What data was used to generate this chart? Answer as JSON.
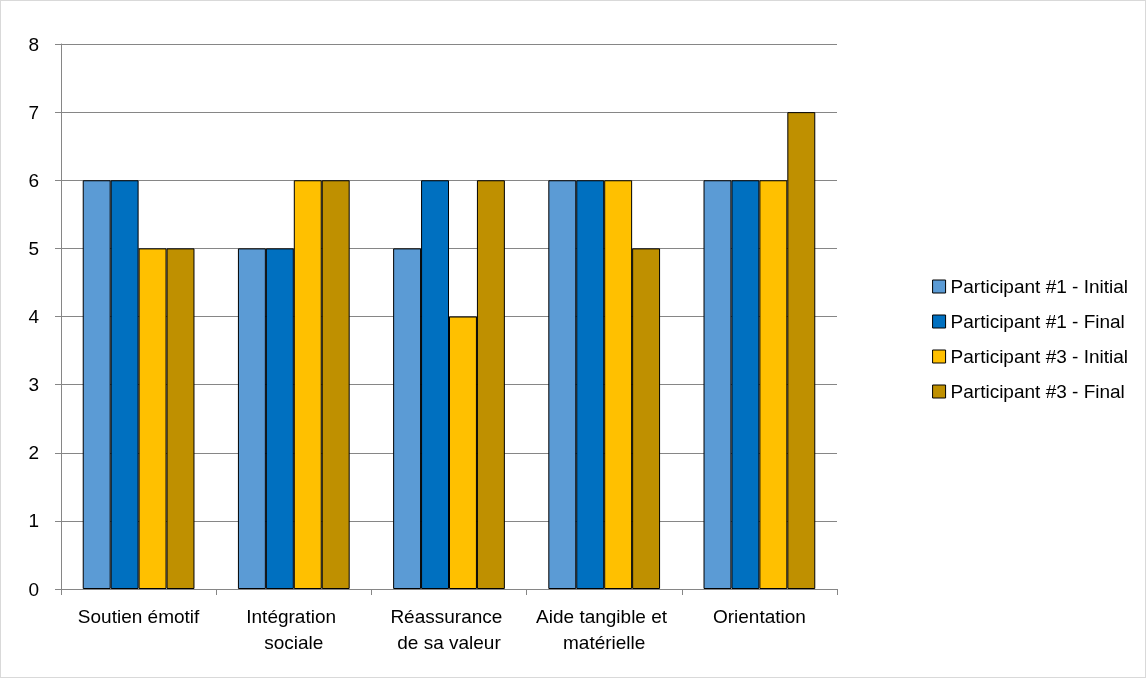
{
  "chart_data": {
    "type": "bar",
    "categories": [
      "Soutien émotif",
      "Intégration sociale",
      "Réassurance de sa valeur",
      "Aide tangible et matérielle",
      "Orientation"
    ],
    "series": [
      {
        "name": "Participant #1 - Initial",
        "color": "#5b9bd5",
        "values": [
          6,
          5,
          5,
          6,
          6
        ]
      },
      {
        "name": "Participant #1 - Final",
        "color": "#0070c0",
        "values": [
          6,
          5,
          6,
          6,
          6
        ]
      },
      {
        "name": "Participant #3 - Initial",
        "color": "#ffc000",
        "values": [
          5,
          6,
          4,
          6,
          6
        ]
      },
      {
        "name": "Participant #3 - Final",
        "color": "#bf9000",
        "values": [
          5,
          6,
          6,
          5,
          7
        ]
      }
    ],
    "ylim": [
      0,
      8
    ],
    "yticks": [
      0,
      1,
      2,
      3,
      4,
      5,
      6,
      7,
      8
    ],
    "grid": "y",
    "legend": "right"
  }
}
